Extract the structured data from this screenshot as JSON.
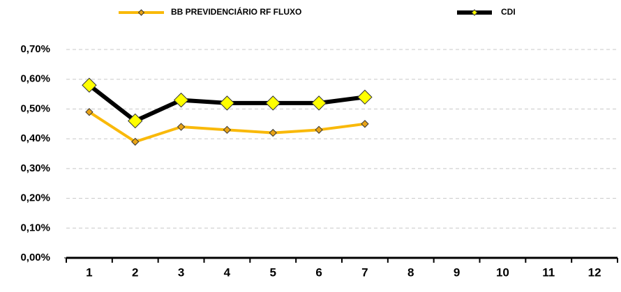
{
  "chart_data": {
    "type": "line",
    "categories": [
      "1",
      "2",
      "3",
      "4",
      "5",
      "6",
      "7",
      "8",
      "9",
      "10",
      "11",
      "12"
    ],
    "series": [
      {
        "name": "BB PREVIDENCIÁRIO RF FLUXO",
        "color": "#f9b90a",
        "marker_color": "#e8a317",
        "values": [
          0.49,
          0.39,
          0.44,
          0.43,
          0.42,
          0.43,
          0.45,
          null,
          null,
          null,
          null,
          null
        ]
      },
      {
        "name": "CDI",
        "color": "#000000",
        "marker_color": "#ffff00",
        "values": [
          0.58,
          0.46,
          0.53,
          0.52,
          0.52,
          0.52,
          0.54,
          null,
          null,
          null,
          null,
          null
        ]
      }
    ],
    "ylim": [
      0,
      0.7
    ],
    "yticks": [
      {
        "value": 0,
        "label": "0,00%"
      },
      {
        "value": 0.1,
        "label": "0,10%"
      },
      {
        "value": 0.2,
        "label": "0,20%"
      },
      {
        "value": 0.3,
        "label": "0,30%"
      },
      {
        "value": 0.4,
        "label": "0,40%"
      },
      {
        "value": 0.5,
        "label": "0,50%"
      },
      {
        "value": 0.6,
        "label": "0,60%"
      },
      {
        "value": 0.7,
        "label": "0,70%"
      }
    ],
    "grid": true,
    "legend": "top"
  }
}
